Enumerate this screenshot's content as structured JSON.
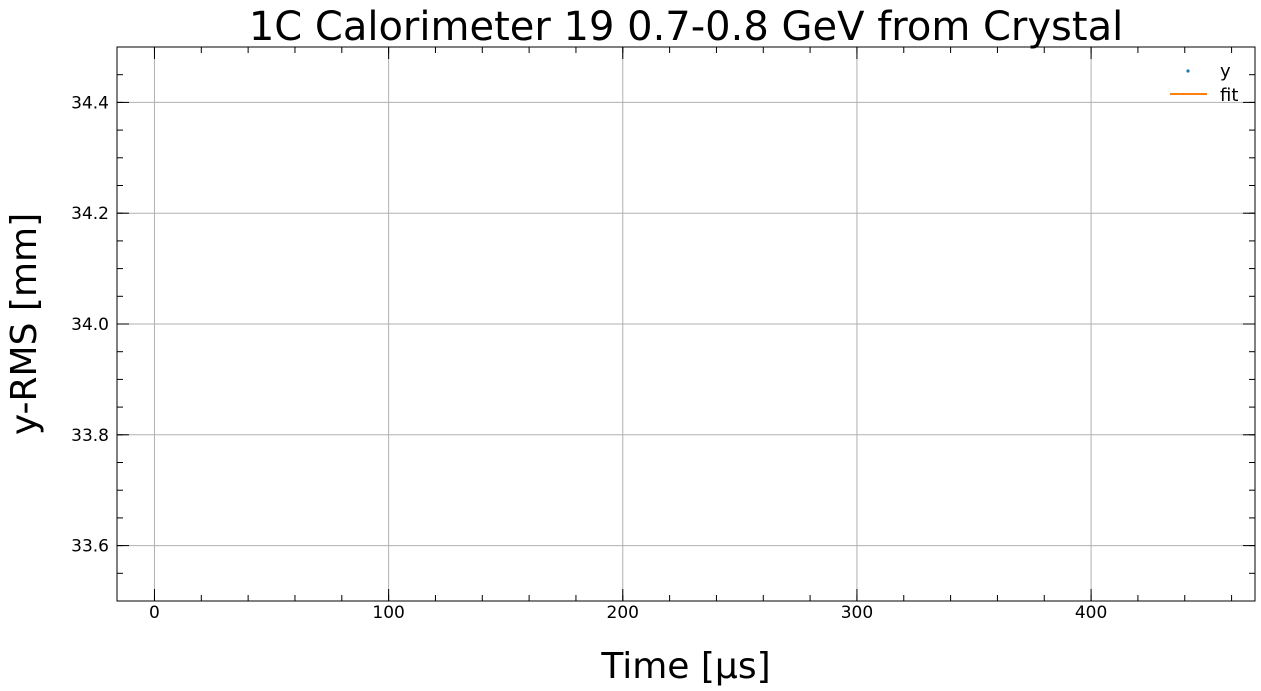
{
  "chart_data": {
    "type": "scatter",
    "title": "1C Calorimeter 19       0.7-0.8 GeV from Crystal",
    "xlabel": "Time     [μs]",
    "ylabel": "y-RMS     [mm]",
    "xlim": [
      -16,
      470
    ],
    "ylim": [
      33.5,
      34.5
    ],
    "x_ticks": [
      0,
      100,
      200,
      300,
      400
    ],
    "y_ticks": [
      33.6,
      33.8,
      34.0,
      34.2,
      34.4
    ],
    "x_tick_labels": [
      "0",
      "100",
      "200",
      "300",
      "400"
    ],
    "y_tick_labels": [
      "33.6",
      "33.8",
      "34.0",
      "34.2",
      "34.4"
    ],
    "x_minor_step": 20,
    "y_minor_step": 0.05,
    "grid": true,
    "legend_position": "top-right",
    "series": [
      {
        "name": "y",
        "kind": "points",
        "color": "#1f77b4",
        "x": [],
        "y": []
      },
      {
        "name": "fit",
        "kind": "line",
        "color": "#ff7f0e",
        "x": [],
        "y": []
      }
    ]
  }
}
